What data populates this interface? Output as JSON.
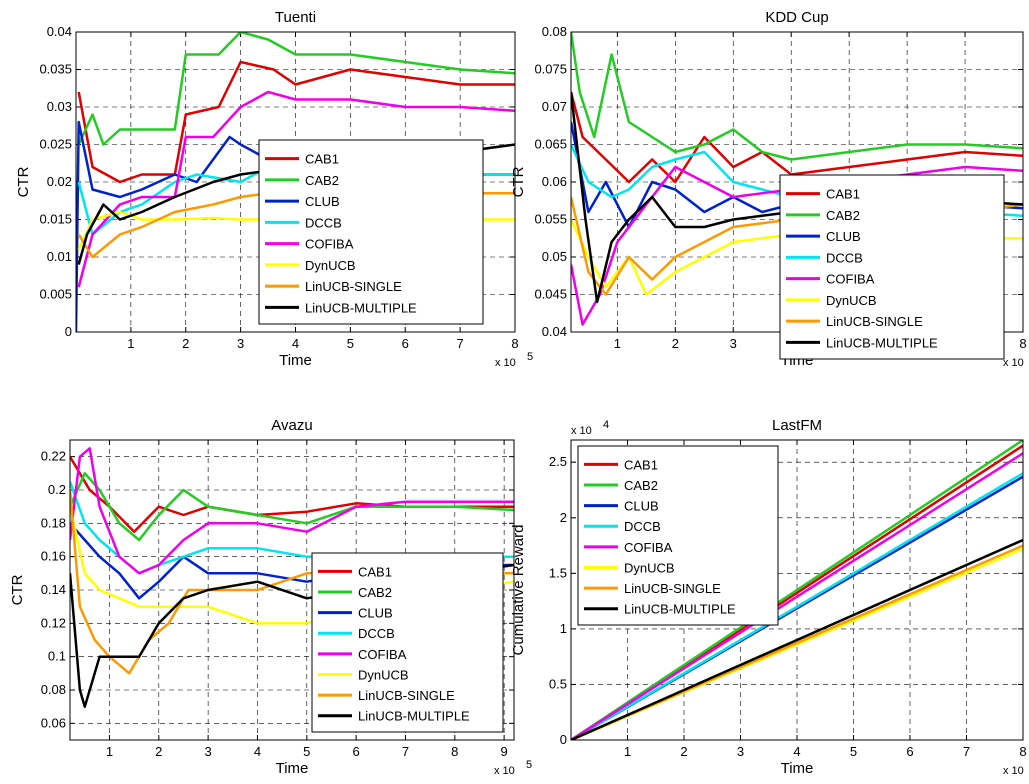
{
  "colors": {
    "CAB1": "#e00000",
    "CAB2": "#22cc22",
    "CLUB": "#0022cc",
    "DCCB": "#00e5ee",
    "COFIBA": "#ee00ee",
    "DynUCB": "#ffff00",
    "LinUCB-SINGLE": "#ff9900",
    "LinUCB-MULTIPLE": "#000000"
  },
  "chart_data": [
    {
      "type": "line",
      "title": "Tuenti",
      "xlabel": "Time",
      "ylabel": "CTR",
      "x_exponent": "x 10",
      "x_exponent_power": "5",
      "xlim": [
        0,
        8
      ],
      "ylim": [
        0,
        0.04
      ],
      "xticks": [
        "1",
        "2",
        "3",
        "4",
        "5",
        "6",
        "7",
        "8"
      ],
      "yticks": [
        "0",
        "0.005",
        "0.01",
        "0.015",
        "0.02",
        "0.025",
        "0.03",
        "0.035",
        "0.04"
      ],
      "grid": true,
      "legend_position": "center-right",
      "series": [
        {
          "name": "CAB1",
          "x": [
            0.05,
            0.3,
            0.8,
            1.2,
            1.8,
            2.0,
            2.6,
            3.0,
            3.6,
            4.0,
            5.0,
            6.0,
            7.0,
            8.0
          ],
          "values": [
            0.032,
            0.022,
            0.02,
            0.021,
            0.021,
            0.029,
            0.03,
            0.036,
            0.035,
            0.033,
            0.035,
            0.034,
            0.033,
            0.033
          ]
        },
        {
          "name": "CAB2",
          "x": [
            0.05,
            0.3,
            0.5,
            0.8,
            1.2,
            1.8,
            2.0,
            2.6,
            3.0,
            3.5,
            4.0,
            5.0,
            6.0,
            7.0,
            8.0
          ],
          "values": [
            0.025,
            0.029,
            0.025,
            0.027,
            0.027,
            0.027,
            0.037,
            0.037,
            0.04,
            0.039,
            0.037,
            0.037,
            0.036,
            0.035,
            0.0345
          ]
        },
        {
          "name": "CLUB",
          "x": [
            0.0,
            0.05,
            0.3,
            0.8,
            1.2,
            1.8,
            2.2,
            2.8,
            3.0,
            3.5,
            4.0,
            5.0,
            6.0,
            7.0,
            8.0
          ],
          "values": [
            0.0,
            0.028,
            0.019,
            0.018,
            0.019,
            0.021,
            0.02,
            0.026,
            0.025,
            0.023,
            0.023,
            0.022,
            0.022,
            0.021,
            0.021
          ]
        },
        {
          "name": "DCCB",
          "x": [
            0.05,
            0.3,
            0.8,
            1.2,
            1.8,
            2.2,
            3.0,
            3.5,
            4.0,
            5.0,
            6.0,
            7.0,
            8.0
          ],
          "values": [
            0.02,
            0.013,
            0.016,
            0.017,
            0.02,
            0.021,
            0.02,
            0.022,
            0.022,
            0.021,
            0.021,
            0.021,
            0.021
          ]
        },
        {
          "name": "COFIBA",
          "x": [
            0.05,
            0.3,
            0.8,
            1.2,
            1.8,
            2.0,
            2.5,
            3.0,
            3.5,
            4.0,
            5.0,
            6.0,
            7.0,
            8.0
          ],
          "values": [
            0.006,
            0.013,
            0.017,
            0.018,
            0.018,
            0.026,
            0.026,
            0.03,
            0.032,
            0.031,
            0.031,
            0.03,
            0.03,
            0.0295
          ]
        },
        {
          "name": "DynUCB",
          "x": [
            0.05,
            0.3,
            0.8,
            1.2,
            1.8,
            2.5,
            3.0,
            4.0,
            5.0,
            6.0,
            7.0,
            8.0
          ],
          "values": [
            0.011,
            0.015,
            0.016,
            0.015,
            0.015,
            0.0152,
            0.015,
            0.015,
            0.015,
            0.015,
            0.015,
            0.015
          ]
        },
        {
          "name": "LinUCB-SINGLE",
          "x": [
            0.05,
            0.3,
            0.8,
            1.2,
            1.8,
            2.5,
            3.0,
            4.0,
            5.0,
            6.0,
            7.0,
            8.0
          ],
          "values": [
            0.013,
            0.01,
            0.013,
            0.014,
            0.016,
            0.017,
            0.018,
            0.019,
            0.019,
            0.0185,
            0.0185,
            0.0185
          ]
        },
        {
          "name": "LinUCB-MULTIPLE",
          "x": [
            0.05,
            0.2,
            0.5,
            0.8,
            1.2,
            1.8,
            2.5,
            3.0,
            4.0,
            5.0,
            6.0,
            7.0,
            8.0
          ],
          "values": [
            0.009,
            0.013,
            0.017,
            0.015,
            0.016,
            0.018,
            0.02,
            0.021,
            0.022,
            0.023,
            0.024,
            0.024,
            0.025
          ]
        }
      ]
    },
    {
      "type": "line",
      "title": "KDD Cup",
      "xlabel": "Time",
      "ylabel": "CTR",
      "x_exponent": "x 10",
      "x_exponent_power": "4",
      "xlim": [
        0.2,
        8
      ],
      "ylim": [
        0.04,
        0.08
      ],
      "xticks": [
        "1",
        "2",
        "3",
        "4",
        "5",
        "6",
        "7",
        "8"
      ],
      "yticks": [
        "0.04",
        "0.045",
        "0.05",
        "0.055",
        "0.06",
        "0.065",
        "0.07",
        "0.075",
        "0.08"
      ],
      "grid": true,
      "legend_position": "bottom-right",
      "series": [
        {
          "name": "CAB1",
          "x": [
            0.2,
            0.4,
            0.8,
            1.2,
            1.6,
            2.0,
            2.5,
            3.0,
            3.5,
            4.0,
            5.0,
            6.0,
            7.0,
            8.0
          ],
          "values": [
            0.072,
            0.066,
            0.063,
            0.06,
            0.063,
            0.06,
            0.066,
            0.062,
            0.064,
            0.061,
            0.062,
            0.063,
            0.064,
            0.0635
          ]
        },
        {
          "name": "CAB2",
          "x": [
            0.2,
            0.35,
            0.6,
            0.9,
            1.2,
            1.6,
            2.0,
            2.5,
            3.0,
            3.5,
            4.0,
            5.0,
            6.0,
            7.0,
            8.0
          ],
          "values": [
            0.08,
            0.072,
            0.066,
            0.077,
            0.068,
            0.066,
            0.064,
            0.065,
            0.067,
            0.064,
            0.063,
            0.064,
            0.065,
            0.065,
            0.0645
          ]
        },
        {
          "name": "CLUB",
          "x": [
            0.2,
            0.5,
            0.8,
            1.2,
            1.6,
            2.0,
            2.5,
            3.0,
            3.5,
            4.0,
            5.0,
            6.0,
            7.0,
            8.0
          ],
          "values": [
            0.068,
            0.056,
            0.06,
            0.054,
            0.06,
            0.059,
            0.056,
            0.058,
            0.056,
            0.057,
            0.056,
            0.056,
            0.057,
            0.0565
          ]
        },
        {
          "name": "DCCB",
          "x": [
            0.2,
            0.5,
            0.9,
            1.2,
            1.6,
            2.0,
            2.5,
            3.0,
            4.0,
            5.0,
            6.0,
            7.0,
            8.0
          ],
          "values": [
            0.065,
            0.06,
            0.058,
            0.059,
            0.062,
            0.063,
            0.064,
            0.06,
            0.058,
            0.057,
            0.057,
            0.056,
            0.0555
          ]
        },
        {
          "name": "COFIBA",
          "x": [
            0.2,
            0.4,
            0.7,
            1.0,
            1.4,
            2.0,
            2.5,
            3.0,
            4.0,
            5.0,
            6.0,
            7.0,
            8.0
          ],
          "values": [
            0.049,
            0.041,
            0.045,
            0.052,
            0.056,
            0.062,
            0.06,
            0.058,
            0.059,
            0.06,
            0.061,
            0.062,
            0.0615
          ]
        },
        {
          "name": "DynUCB",
          "x": [
            0.2,
            0.5,
            0.8,
            1.2,
            1.5,
            2.0,
            2.5,
            3.0,
            4.0,
            5.0,
            6.0,
            7.0,
            8.0
          ],
          "values": [
            0.055,
            0.05,
            0.046,
            0.05,
            0.045,
            0.048,
            0.05,
            0.052,
            0.053,
            0.053,
            0.053,
            0.0525,
            0.0525
          ]
        },
        {
          "name": "LinUCB-SINGLE",
          "x": [
            0.2,
            0.5,
            0.8,
            1.2,
            1.6,
            2.0,
            2.5,
            3.0,
            4.0,
            5.0,
            6.0,
            7.0,
            8.0
          ],
          "values": [
            0.058,
            0.048,
            0.045,
            0.05,
            0.047,
            0.05,
            0.052,
            0.054,
            0.055,
            0.056,
            0.056,
            0.056,
            0.057
          ]
        },
        {
          "name": "LinUCB-MULTIPLE",
          "x": [
            0.2,
            0.45,
            0.65,
            0.9,
            1.2,
            1.6,
            2.0,
            2.5,
            3.0,
            4.0,
            5.0,
            6.0,
            7.0,
            8.0
          ],
          "values": [
            0.072,
            0.055,
            0.044,
            0.052,
            0.055,
            0.058,
            0.054,
            0.054,
            0.055,
            0.056,
            0.057,
            0.0575,
            0.0575,
            0.057
          ]
        }
      ]
    },
    {
      "type": "line",
      "title": "Avazu",
      "xlabel": "Time",
      "ylabel": "CTR",
      "x_exponent": "x 10",
      "x_exponent_power": "5",
      "xlim": [
        0.2,
        9.2
      ],
      "ylim": [
        0.05,
        0.23
      ],
      "xticks": [
        "1",
        "2",
        "3",
        "4",
        "5",
        "6",
        "7",
        "8",
        "9"
      ],
      "yticks": [
        "0.06",
        "0.08",
        "0.1",
        "0.12",
        "0.14",
        "0.16",
        "0.18",
        "0.2",
        "0.22"
      ],
      "grid": true,
      "legend_position": "bottom-right",
      "series": [
        {
          "name": "CAB1",
          "x": [
            0.2,
            0.6,
            1.0,
            1.5,
            2.0,
            2.5,
            3.0,
            4.0,
            5.0,
            6.0,
            7.0,
            8.0,
            9.2
          ],
          "values": [
            0.22,
            0.2,
            0.19,
            0.175,
            0.19,
            0.185,
            0.19,
            0.185,
            0.187,
            0.192,
            0.19,
            0.19,
            0.19
          ]
        },
        {
          "name": "CAB2",
          "x": [
            0.2,
            0.5,
            0.8,
            1.2,
            1.6,
            2.0,
            2.5,
            3.0,
            4.0,
            5.0,
            6.0,
            7.0,
            8.0,
            9.2
          ],
          "values": [
            0.19,
            0.21,
            0.2,
            0.18,
            0.17,
            0.185,
            0.2,
            0.19,
            0.185,
            0.18,
            0.19,
            0.19,
            0.19,
            0.188
          ]
        },
        {
          "name": "CLUB",
          "x": [
            0.2,
            0.5,
            0.8,
            1.2,
            1.6,
            2.0,
            2.5,
            3.0,
            4.0,
            5.0,
            6.0,
            7.0,
            8.0,
            9.2
          ],
          "values": [
            0.18,
            0.17,
            0.16,
            0.15,
            0.135,
            0.145,
            0.16,
            0.15,
            0.15,
            0.145,
            0.15,
            0.15,
            0.155,
            0.155
          ]
        },
        {
          "name": "DCCB",
          "x": [
            0.2,
            0.5,
            0.8,
            1.2,
            1.6,
            2.0,
            2.5,
            3.0,
            4.0,
            5.0,
            6.0,
            7.0,
            8.0,
            9.2
          ],
          "values": [
            0.205,
            0.18,
            0.17,
            0.16,
            0.15,
            0.155,
            0.16,
            0.165,
            0.165,
            0.16,
            0.16,
            0.16,
            0.16,
            0.16
          ]
        },
        {
          "name": "COFIBA",
          "x": [
            0.2,
            0.4,
            0.6,
            0.8,
            1.2,
            1.6,
            2.0,
            2.5,
            3.0,
            4.0,
            5.0,
            6.0,
            7.0,
            8.0,
            9.2
          ],
          "values": [
            0.17,
            0.22,
            0.225,
            0.19,
            0.16,
            0.15,
            0.155,
            0.17,
            0.18,
            0.18,
            0.175,
            0.19,
            0.193,
            0.193,
            0.193
          ]
        },
        {
          "name": "DynUCB",
          "x": [
            0.2,
            0.5,
            0.8,
            1.2,
            1.6,
            2.0,
            2.5,
            3.0,
            4.0,
            5.0,
            6.0,
            7.0,
            8.0,
            9.2
          ],
          "values": [
            0.19,
            0.15,
            0.14,
            0.135,
            0.13,
            0.13,
            0.13,
            0.13,
            0.12,
            0.12,
            0.13,
            0.14,
            0.14,
            0.145
          ]
        },
        {
          "name": "LinUCB-SINGLE",
          "x": [
            0.2,
            0.4,
            0.7,
            1.0,
            1.4,
            1.8,
            2.2,
            2.6,
            3.0,
            4.0,
            5.0,
            6.0,
            7.0,
            8.0,
            9.2
          ],
          "values": [
            0.2,
            0.13,
            0.11,
            0.1,
            0.09,
            0.11,
            0.12,
            0.14,
            0.14,
            0.14,
            0.15,
            0.15,
            0.15,
            0.15,
            0.15
          ]
        },
        {
          "name": "LinUCB-MULTIPLE",
          "x": [
            0.2,
            0.4,
            0.5,
            0.8,
            1.2,
            1.6,
            2.0,
            2.5,
            3.0,
            4.0,
            5.0,
            6.0,
            7.0,
            8.0,
            9.2
          ],
          "values": [
            0.15,
            0.08,
            0.07,
            0.1,
            0.1,
            0.1,
            0.12,
            0.135,
            0.14,
            0.145,
            0.135,
            0.14,
            0.145,
            0.15,
            0.155
          ]
        }
      ]
    },
    {
      "type": "line",
      "title": "LastFM",
      "xlabel": "Time",
      "ylabel": "Cumulative Reward",
      "x_exponent": "x 10",
      "x_exponent_power": "4",
      "y_exponent": "x 10",
      "y_exponent_power": "4",
      "xlim": [
        0,
        8
      ],
      "ylim": [
        0,
        2.7
      ],
      "xticks": [
        "1",
        "2",
        "3",
        "4",
        "5",
        "6",
        "7",
        "8"
      ],
      "yticks": [
        "0",
        "0.5",
        "1",
        "1.5",
        "2",
        "2.5"
      ],
      "grid": true,
      "legend_position": "top-left",
      "series": [
        {
          "name": "CAB1",
          "x": [
            0,
            8
          ],
          "values": [
            0,
            2.65
          ]
        },
        {
          "name": "CAB2",
          "x": [
            0,
            8
          ],
          "values": [
            0,
            2.7
          ]
        },
        {
          "name": "CLUB",
          "x": [
            0,
            8
          ],
          "values": [
            0,
            2.37
          ]
        },
        {
          "name": "DCCB",
          "x": [
            0,
            8
          ],
          "values": [
            0,
            2.4
          ]
        },
        {
          "name": "COFIBA",
          "x": [
            0,
            8
          ],
          "values": [
            0,
            2.58
          ]
        },
        {
          "name": "DynUCB",
          "x": [
            0,
            8
          ],
          "values": [
            0,
            1.72
          ]
        },
        {
          "name": "LinUCB-SINGLE",
          "x": [
            0,
            8
          ],
          "values": [
            0,
            1.75
          ]
        },
        {
          "name": "LinUCB-MULTIPLE",
          "x": [
            0,
            8
          ],
          "values": [
            0,
            1.8
          ]
        }
      ]
    }
  ]
}
